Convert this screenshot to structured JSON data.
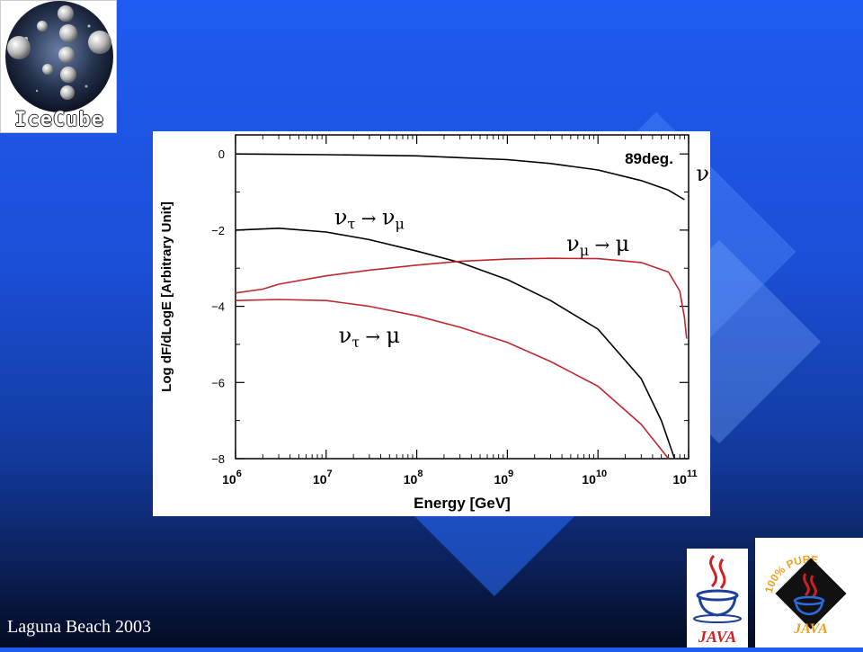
{
  "logo": {
    "text": "IceCube"
  },
  "footer": {
    "text": "Laguna Beach 2003"
  },
  "java_logos": {
    "left_text": "JAVA",
    "right_text": "JAVA",
    "right_ring": "100% PURE"
  },
  "chart_data": {
    "type": "line",
    "title": "",
    "annotation": "89deg.",
    "xlabel": "Energy [GeV]",
    "ylabel": "Log dF/dLogE [Arbitrary Unit]",
    "x_scale": "log",
    "xlim": [
      1000000,
      100000000000
    ],
    "ylim": [
      -8,
      0.5
    ],
    "x_ticks": [
      {
        "base": "10",
        "exp": "6",
        "value": 1000000
      },
      {
        "base": "10",
        "exp": "7",
        "value": 10000000
      },
      {
        "base": "10",
        "exp": "8",
        "value": 100000000
      },
      {
        "base": "10",
        "exp": "9",
        "value": 1000000000
      },
      {
        "base": "10",
        "exp": "10",
        "value": 10000000000
      },
      {
        "base": "10",
        "exp": "11",
        "value": 100000000000
      }
    ],
    "y_ticks": [
      {
        "label": "0",
        "value": 0
      },
      {
        "label": "−2",
        "value": -2
      },
      {
        "label": "−4",
        "value": -4
      },
      {
        "label": "−6",
        "value": -6
      },
      {
        "label": "−8",
        "value": -8
      }
    ],
    "series": [
      {
        "label": "νμ → νμ",
        "label_parts": {
          "a": "ν",
          "a_sub": "μ",
          "arrow": "→",
          "b": "ν",
          "b_sub": "μ"
        },
        "label_anchor": {
          "x": 300000000000,
          "y": -0.7
        },
        "color": "#000000",
        "points": [
          [
            1000000,
            0.0
          ],
          [
            10000000,
            -0.02
          ],
          [
            100000000,
            -0.05
          ],
          [
            1000000000,
            -0.15
          ],
          [
            3000000000,
            -0.25
          ],
          [
            10000000000,
            -0.42
          ],
          [
            30000000000,
            -0.7
          ],
          [
            60000000000,
            -0.95
          ],
          [
            90000000000,
            -1.2
          ]
        ]
      },
      {
        "label": "ντ → νμ",
        "label_parts": {
          "a": "ν",
          "a_sub": "τ",
          "arrow": "→",
          "b": "ν",
          "b_sub": "μ"
        },
        "label_anchor": {
          "x": 30000000,
          "y": -1.85
        },
        "color": "#000000",
        "points": [
          [
            1000000,
            -2.0
          ],
          [
            3000000,
            -1.95
          ],
          [
            10000000,
            -2.05
          ],
          [
            30000000,
            -2.25
          ],
          [
            100000000,
            -2.55
          ],
          [
            300000000,
            -2.85
          ],
          [
            1000000000,
            -3.3
          ],
          [
            3000000000,
            -3.85
          ],
          [
            10000000000,
            -4.6
          ],
          [
            30000000000,
            -5.9
          ],
          [
            50000000000,
            -7.0
          ],
          [
            70000000000,
            -8.0
          ]
        ]
      },
      {
        "label": "νμ → μ",
        "label_parts": {
          "a": "ν",
          "a_sub": "μ",
          "arrow": "→",
          "b": "μ",
          "b_sub": ""
        },
        "label_anchor": {
          "x": 10000000000,
          "y": -2.55
        },
        "color": "#c0272d",
        "points": [
          [
            1000000,
            -3.65
          ],
          [
            2000000,
            -3.55
          ],
          [
            3000000,
            -3.42
          ],
          [
            10000000,
            -3.2
          ],
          [
            30000000,
            -3.05
          ],
          [
            100000000,
            -2.92
          ],
          [
            300000000,
            -2.82
          ],
          [
            1000000000,
            -2.76
          ],
          [
            3000000000,
            -2.74
          ],
          [
            10000000000,
            -2.75
          ],
          [
            30000000000,
            -2.85
          ],
          [
            60000000000,
            -3.1
          ],
          [
            80000000000,
            -3.6
          ],
          [
            90000000000,
            -4.3
          ],
          [
            95000000000,
            -4.85
          ]
        ]
      },
      {
        "label": "ντ → μ",
        "label_parts": {
          "a": "ν",
          "a_sub": "τ",
          "arrow": "→",
          "b": "μ",
          "b_sub": ""
        },
        "label_anchor": {
          "x": 30000000,
          "y": -4.95
        },
        "color": "#c0272d",
        "points": [
          [
            1000000,
            -3.85
          ],
          [
            3000000,
            -3.82
          ],
          [
            10000000,
            -3.85
          ],
          [
            30000000,
            -4.0
          ],
          [
            100000000,
            -4.25
          ],
          [
            300000000,
            -4.55
          ],
          [
            1000000000,
            -4.95
          ],
          [
            3000000000,
            -5.45
          ],
          [
            10000000000,
            -6.1
          ],
          [
            30000000000,
            -7.1
          ],
          [
            60000000000,
            -8.0
          ]
        ]
      }
    ]
  }
}
